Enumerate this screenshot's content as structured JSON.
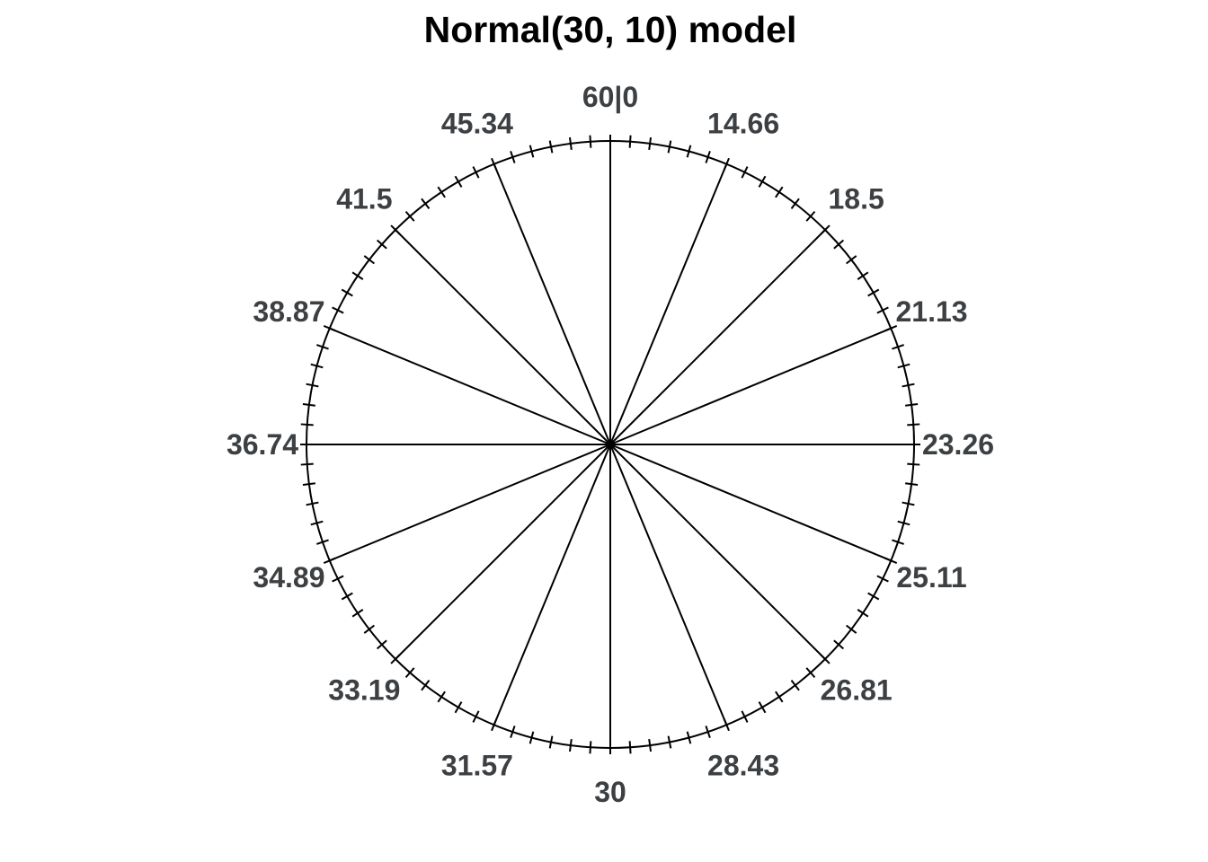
{
  "title": "Normal(30, 10) model",
  "chart_data": {
    "type": "spinner",
    "title": "Normal(30, 10) model",
    "distribution": "Normal(30, 10)",
    "wheel": {
      "top_label": "60|0",
      "sector_count": 16,
      "sector_probability": 0.0625,
      "spokes": [
        {
          "label": "60|0",
          "angle_deg": 0
        },
        {
          "label": "14.66",
          "angle_deg": 22.5
        },
        {
          "label": "18.5",
          "angle_deg": 45
        },
        {
          "label": "21.13",
          "angle_deg": 67.5
        },
        {
          "label": "23.26",
          "angle_deg": 90
        },
        {
          "label": "25.11",
          "angle_deg": 112.5
        },
        {
          "label": "26.81",
          "angle_deg": 135
        },
        {
          "label": "28.43",
          "angle_deg": 157.5
        },
        {
          "label": "30",
          "angle_deg": 180
        },
        {
          "label": "31.57",
          "angle_deg": 202.5
        },
        {
          "label": "33.19",
          "angle_deg": 225
        },
        {
          "label": "34.89",
          "angle_deg": 247.5
        },
        {
          "label": "36.74",
          "angle_deg": 270
        },
        {
          "label": "38.87",
          "angle_deg": 292.5
        },
        {
          "label": "41.5",
          "angle_deg": 315
        },
        {
          "label": "45.34",
          "angle_deg": 337.5
        }
      ],
      "minor_ticks": {
        "count": 96,
        "step_deg": 3.75
      }
    },
    "legend": false,
    "grid": false,
    "colors": {
      "line": "#000000",
      "label": "#3d4043",
      "title": "#000000",
      "background": "#ffffff"
    }
  }
}
